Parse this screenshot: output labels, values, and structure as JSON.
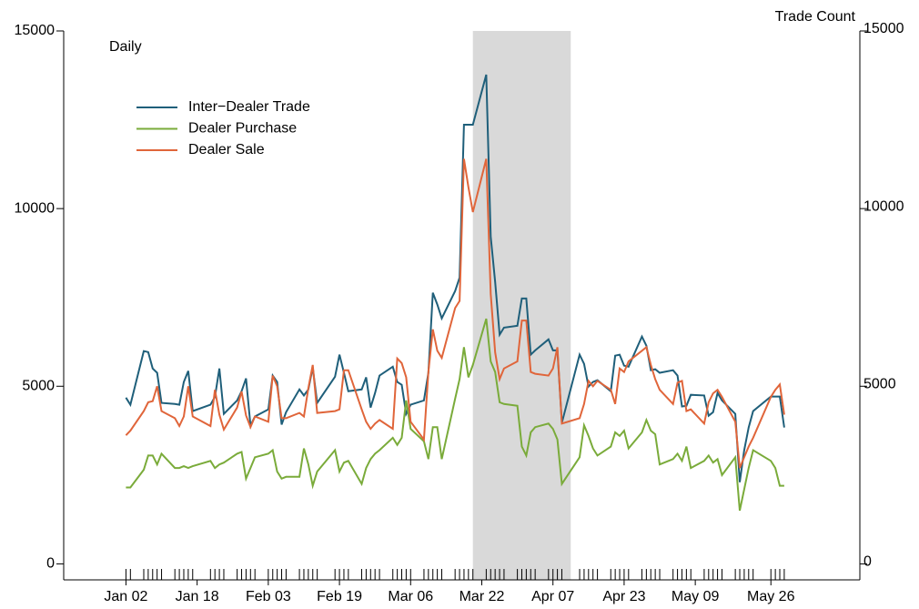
{
  "chart_data": {
    "type": "line",
    "y_label": "Daily",
    "y2_label": "Trade Count",
    "x": [
      "01-02",
      "01-03",
      "01-06",
      "01-07",
      "01-08",
      "01-09",
      "01-10",
      "01-13",
      "01-14",
      "01-15",
      "01-16",
      "01-17",
      "01-21",
      "01-22",
      "01-23",
      "01-24",
      "01-27",
      "01-28",
      "01-29",
      "01-30",
      "01-31",
      "02-03",
      "02-04",
      "02-05",
      "02-06",
      "02-07",
      "02-10",
      "02-11",
      "02-12",
      "02-13",
      "02-14",
      "02-18",
      "02-19",
      "02-20",
      "02-21",
      "02-24",
      "02-25",
      "02-26",
      "02-27",
      "02-28",
      "03-02",
      "03-03",
      "03-04",
      "03-05",
      "03-06",
      "03-09",
      "03-10",
      "03-11",
      "03-12",
      "03-13",
      "03-16",
      "03-17",
      "03-18",
      "03-19",
      "03-20",
      "03-23",
      "03-24",
      "03-25",
      "03-26",
      "03-27",
      "03-30",
      "03-31",
      "04-01",
      "04-02",
      "04-03",
      "04-06",
      "04-07",
      "04-08",
      "04-09",
      "04-13",
      "04-14",
      "04-15",
      "04-16",
      "04-17",
      "04-20",
      "04-21",
      "04-22",
      "04-23",
      "04-24",
      "04-27",
      "04-28",
      "04-29",
      "04-30",
      "05-01",
      "05-04",
      "05-05",
      "05-06",
      "05-07",
      "05-08",
      "05-11",
      "05-12",
      "05-13",
      "05-14",
      "05-15",
      "05-18",
      "05-19",
      "05-20",
      "05-21",
      "05-22",
      "05-26",
      "05-27",
      "05-28",
      "05-29"
    ],
    "series": [
      {
        "name": "Inter−Dealer Trade",
        "color": "#1f5f7a",
        "values": [
          4680,
          4480,
          5990,
          5960,
          5500,
          5380,
          4530,
          4500,
          4480,
          5120,
          5430,
          4300,
          4480,
          4700,
          5500,
          4220,
          4600,
          4860,
          5220,
          3890,
          4150,
          4350,
          5300,
          5120,
          3920,
          4270,
          4910,
          4740,
          4910,
          5530,
          4530,
          5270,
          5890,
          5380,
          4860,
          4910,
          5250,
          4400,
          4810,
          5300,
          5550,
          5120,
          5040,
          4220,
          4480,
          4600,
          5380,
          7630,
          7300,
          6910,
          7680,
          8060,
          12360,
          12360,
          12360,
          13770,
          9210,
          7930,
          6450,
          6650,
          6700,
          7470,
          7470,
          5890,
          6010,
          6320,
          6010,
          6010,
          3970,
          5890,
          5630,
          4990,
          5120,
          5170,
          4860,
          5860,
          5890,
          5580,
          5550,
          6400,
          6140,
          5450,
          5480,
          5380,
          5450,
          5300,
          4430,
          4450,
          4760,
          4740,
          4170,
          4270,
          4810,
          4600,
          4220,
          2300,
          3200,
          3840,
          4300,
          4710,
          4710,
          4710,
          3840
        ]
      },
      {
        "name": "Dealer Purchase",
        "color": "#7aab3a",
        "values": [
          2150,
          2150,
          2650,
          3050,
          3050,
          2800,
          3100,
          2700,
          2700,
          2750,
          2700,
          2750,
          2900,
          2700,
          2800,
          2850,
          3100,
          3150,
          2400,
          2700,
          3000,
          3100,
          3200,
          2600,
          2400,
          2450,
          2450,
          3250,
          2800,
          2200,
          2600,
          3200,
          2600,
          2850,
          2900,
          2250,
          2700,
          2950,
          3100,
          3200,
          3550,
          3350,
          3550,
          4600,
          3800,
          3450,
          2950,
          3850,
          3850,
          2950,
          4650,
          5200,
          6100,
          5250,
          5600,
          6900,
          5700,
          5400,
          4550,
          4500,
          4450,
          3300,
          3050,
          3700,
          3850,
          3950,
          3800,
          3500,
          2250,
          3000,
          3900,
          3600,
          3250,
          3050,
          3300,
          3700,
          3600,
          3750,
          3250,
          3700,
          4050,
          3750,
          3650,
          2800,
          2950,
          3100,
          2900,
          3300,
          2700,
          2900,
          3050,
          2850,
          2950,
          2500,
          3000,
          1500,
          2100,
          2700,
          3200,
          2900,
          2700,
          2200,
          2200
        ]
      },
      {
        "name": "Dealer Sale",
        "color": "#e0653a",
        "values": [
          3620,
          3750,
          4300,
          4550,
          4580,
          5000,
          4300,
          4100,
          3880,
          4150,
          5000,
          4150,
          3880,
          4900,
          4200,
          3780,
          4400,
          4850,
          4180,
          3850,
          4150,
          4000,
          5300,
          5000,
          4100,
          4100,
          4250,
          4150,
          4950,
          5600,
          4250,
          4300,
          4350,
          5450,
          5450,
          4350,
          4000,
          3800,
          3950,
          4050,
          3800,
          5780,
          5650,
          5250,
          4000,
          3500,
          5400,
          6600,
          6000,
          5800,
          7200,
          7400,
          11400,
          10600,
          9900,
          11400,
          7600,
          5950,
          5200,
          5500,
          5700,
          6850,
          6850,
          5400,
          5350,
          5300,
          5500,
          6100,
          3950,
          4100,
          4500,
          5150,
          5000,
          5150,
          4900,
          4500,
          5500,
          5400,
          5700,
          6000,
          6100,
          5600,
          5200,
          4900,
          4500,
          5100,
          5150,
          4300,
          4350,
          3950,
          4550,
          4800,
          4900,
          4700,
          4000,
          2700,
          3000,
          3300,
          3550,
          4700,
          4900,
          5050,
          4200
        ]
      }
    ],
    "shade": [
      "03-20",
      "04-11"
    ],
    "xlim": [
      "12-19",
      "06-15"
    ],
    "xticks": [
      {
        "value": "01-02",
        "label": "Jan 02"
      },
      {
        "value": "01-18",
        "label": "Jan 18"
      },
      {
        "value": "02-03",
        "label": "Feb 03"
      },
      {
        "value": "02-19",
        "label": "Feb 19"
      },
      {
        "value": "03-06",
        "label": "Mar 06"
      },
      {
        "value": "03-22",
        "label": "Mar 22"
      },
      {
        "value": "04-07",
        "label": "Apr 07"
      },
      {
        "value": "04-23",
        "label": "Apr 23"
      },
      {
        "value": "05-09",
        "label": "May 09"
      },
      {
        "value": "05-26",
        "label": "May 26"
      }
    ],
    "ylim": [
      -450,
      15000
    ],
    "yticks": [
      0,
      5000,
      10000,
      15000
    ],
    "y2lim": [
      -450,
      15000
    ],
    "y2ticks": [
      0,
      5000,
      10000,
      15000
    ],
    "legend": "upper left"
  }
}
